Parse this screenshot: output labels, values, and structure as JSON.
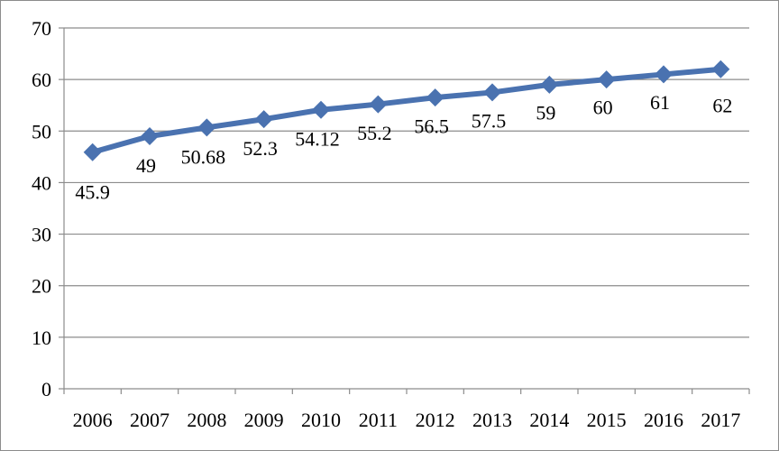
{
  "chart_data": {
    "type": "line",
    "categories": [
      "2006",
      "2007",
      "2008",
      "2009",
      "2010",
      "2011",
      "2012",
      "2013",
      "2014",
      "2015",
      "2016",
      "2017"
    ],
    "series": [
      {
        "values": [
          45.9,
          49,
          50.68,
          52.3,
          54.12,
          55.2,
          56.5,
          57.5,
          59,
          60,
          61,
          62
        ],
        "labels": [
          "45.9",
          "49",
          "50.68",
          "52.3",
          "54.12",
          "55.2",
          "56.5",
          "57.5",
          "59",
          "60",
          "61",
          "62"
        ],
        "color": "#4a72b0",
        "marker": "diamond"
      }
    ],
    "yticks": [
      "0",
      "10",
      "20",
      "30",
      "40",
      "50",
      "60",
      "70"
    ],
    "ylim": [
      0,
      70
    ],
    "grid": true,
    "legend": "none",
    "title": "",
    "xlabel": "",
    "ylabel": ""
  },
  "colors": {
    "series": "#4a72b0",
    "gridline": "#8c8c8c",
    "axis": "#8c8c8c",
    "frame": "#8c8c8c"
  }
}
